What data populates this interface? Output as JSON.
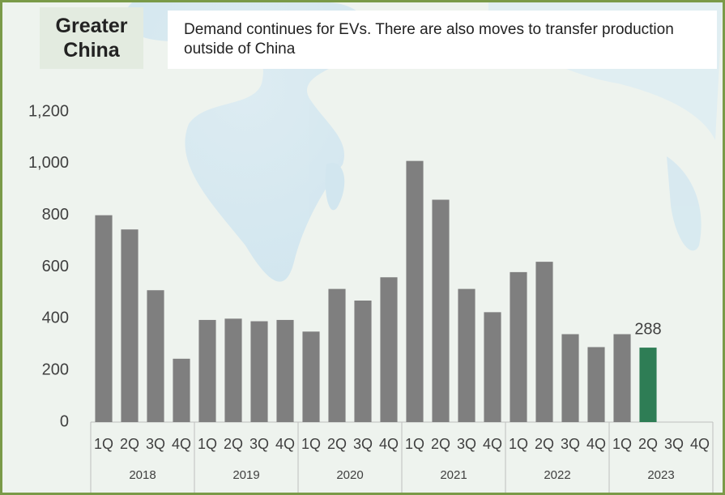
{
  "chart_data": {
    "type": "bar",
    "title": "Greater China",
    "subtitle": "Demand continues for EVs. There are also moves to transfer production outside of China",
    "categories": [
      "1Q",
      "2Q",
      "3Q",
      "4Q",
      "1Q",
      "2Q",
      "3Q",
      "4Q",
      "1Q",
      "2Q",
      "3Q",
      "4Q",
      "1Q",
      "2Q",
      "3Q",
      "4Q",
      "1Q",
      "2Q",
      "3Q",
      "4Q",
      "1Q",
      "2Q",
      "3Q",
      "4Q"
    ],
    "years": [
      "2018",
      "2019",
      "2020",
      "2021",
      "2022",
      "2023"
    ],
    "values": [
      800,
      745,
      510,
      245,
      395,
      400,
      390,
      395,
      350,
      515,
      470,
      560,
      1010,
      860,
      515,
      425,
      580,
      620,
      340,
      290,
      340,
      288,
      null,
      null
    ],
    "value_labels": [
      null,
      null,
      null,
      null,
      null,
      null,
      null,
      null,
      null,
      null,
      null,
      null,
      null,
      null,
      null,
      null,
      null,
      null,
      null,
      null,
      null,
      "288",
      null,
      null
    ],
    "colors": [
      "#7f7f7f",
      "#7f7f7f",
      "#7f7f7f",
      "#7f7f7f",
      "#7f7f7f",
      "#7f7f7f",
      "#7f7f7f",
      "#7f7f7f",
      "#7f7f7f",
      "#7f7f7f",
      "#7f7f7f",
      "#7f7f7f",
      "#7f7f7f",
      "#7f7f7f",
      "#7f7f7f",
      "#7f7f7f",
      "#7f7f7f",
      "#7f7f7f",
      "#7f7f7f",
      "#7f7f7f",
      "#7f7f7f",
      "#2e7d55",
      "#7f7f7f",
      "#7f7f7f"
    ],
    "ylim": [
      0,
      1200
    ],
    "yticks": [
      0,
      200,
      400,
      600,
      800,
      {
        "value": 1000,
        "label": "1,000"
      },
      {
        "value": 1200,
        "label": "1,200"
      }
    ],
    "grid": false
  }
}
